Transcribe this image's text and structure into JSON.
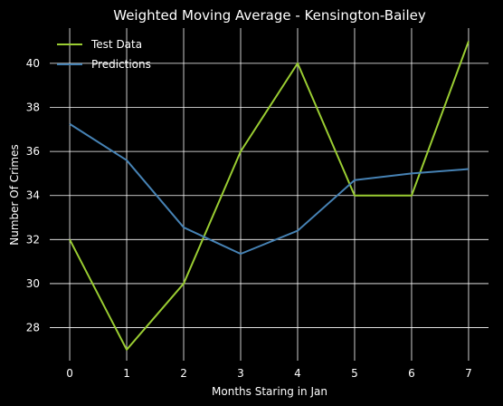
{
  "chart_data": {
    "type": "line",
    "title": "Weighted Moving Average - Kensington-Bailey",
    "xlabel": "Months Staring in Jan",
    "ylabel": "Number Of Crimes",
    "x": [
      0,
      1,
      2,
      3,
      4,
      5,
      6,
      7
    ],
    "xlim": [
      -0.35,
      7.35
    ],
    "ylim": [
      26.5,
      41.6
    ],
    "yticks": [
      28,
      30,
      32,
      34,
      36,
      38,
      40
    ],
    "grid": true,
    "legend_position": "top-left",
    "series": [
      {
        "name": "Test Data",
        "color": "#9acd32",
        "values": [
          32,
          27,
          30,
          36,
          40,
          34,
          34,
          41
        ]
      },
      {
        "name": "Predictions",
        "color": "#4682b4",
        "values": [
          37.25,
          35.6,
          32.55,
          31.35,
          32.4,
          34.7,
          35.0,
          35.2
        ]
      }
    ],
    "background": "#000000"
  }
}
